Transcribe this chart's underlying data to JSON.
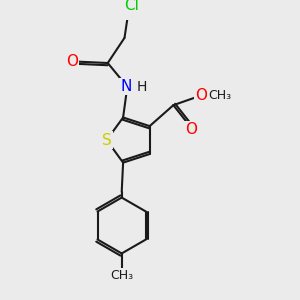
{
  "bg_color": "#ebebeb",
  "bond_color": "#1a1a1a",
  "S_color": "#cccc00",
  "N_color": "#0000ff",
  "O_color": "#ff0000",
  "Cl_color": "#00cc00",
  "bond_width": 1.5,
  "figsize": [
    3.0,
    3.0
  ],
  "dpi": 100,
  "xlim": [
    0,
    10
  ],
  "ylim": [
    0,
    10
  ],
  "font_size_atom": 10,
  "font_size_small": 9
}
